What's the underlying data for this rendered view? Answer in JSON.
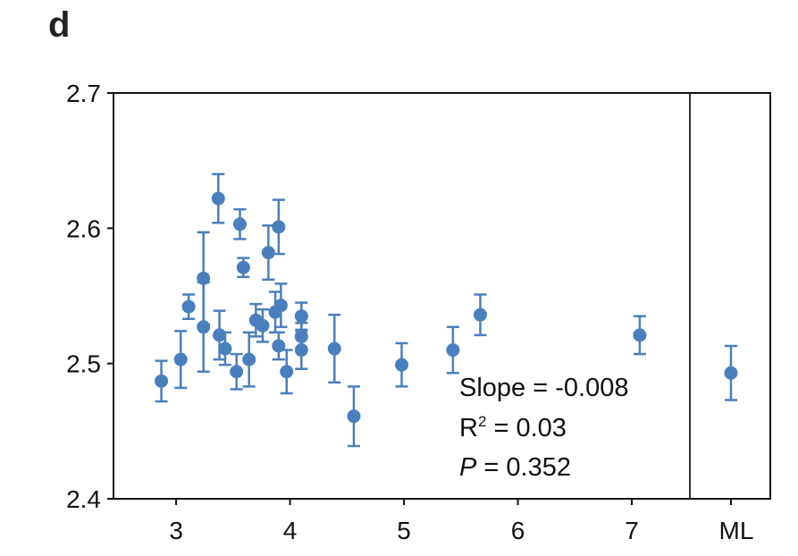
{
  "panel_label": "d",
  "chart_data": {
    "type": "scatter",
    "title": "",
    "xlabel": "",
    "ylabel": "",
    "xlim": [
      2.45,
      7.51
    ],
    "ylim": [
      2.4,
      2.7
    ],
    "x_ticks": [
      3,
      4,
      5,
      6,
      7
    ],
    "x_tick_labels": [
      "3",
      "4",
      "5",
      "6",
      "7"
    ],
    "y_ticks": [
      2.4,
      2.5,
      2.6,
      2.7
    ],
    "y_tick_labels": [
      "2.4",
      "2.5",
      "2.6",
      "2.7"
    ],
    "grid": false,
    "color": "#4a7fbd",
    "points": [
      {
        "x": 2.87,
        "y": 2.487,
        "err": 0.015
      },
      {
        "x": 3.04,
        "y": 2.503,
        "err": 0.021
      },
      {
        "x": 3.11,
        "y": 2.542,
        "err": 0.009
      },
      {
        "x": 3.24,
        "y": 2.563,
        "err": 0.034
      },
      {
        "x": 3.24,
        "y": 2.527,
        "err": 0.033
      },
      {
        "x": 3.37,
        "y": 2.622,
        "err": 0.018
      },
      {
        "x": 3.38,
        "y": 2.521,
        "err": 0.018
      },
      {
        "x": 3.43,
        "y": 2.511,
        "err": 0.012
      },
      {
        "x": 3.53,
        "y": 2.494,
        "err": 0.013
      },
      {
        "x": 3.56,
        "y": 2.603,
        "err": 0.011
      },
      {
        "x": 3.59,
        "y": 2.571,
        "err": 0.007
      },
      {
        "x": 3.64,
        "y": 2.503,
        "err": 0.02
      },
      {
        "x": 3.7,
        "y": 2.532,
        "err": 0.012
      },
      {
        "x": 3.76,
        "y": 2.528,
        "err": 0.012
      },
      {
        "x": 3.81,
        "y": 2.582,
        "err": 0.02
      },
      {
        "x": 3.87,
        "y": 2.538,
        "err": 0.015
      },
      {
        "x": 3.9,
        "y": 2.601,
        "err": 0.02
      },
      {
        "x": 3.9,
        "y": 2.513,
        "err": 0.01
      },
      {
        "x": 3.92,
        "y": 2.543,
        "err": 0.016
      },
      {
        "x": 3.97,
        "y": 2.494,
        "err": 0.016
      },
      {
        "x": 4.1,
        "y": 2.535,
        "err": 0.01
      },
      {
        "x": 4.1,
        "y": 2.52,
        "err": 0.01
      },
      {
        "x": 4.1,
        "y": 2.51,
        "err": 0.014
      },
      {
        "x": 4.39,
        "y": 2.511,
        "err": 0.025
      },
      {
        "x": 4.56,
        "y": 2.461,
        "err": 0.022
      },
      {
        "x": 4.98,
        "y": 2.499,
        "err": 0.016
      },
      {
        "x": 5.43,
        "y": 2.51,
        "err": 0.017
      },
      {
        "x": 5.67,
        "y": 2.536,
        "err": 0.015
      },
      {
        "x": 7.07,
        "y": 2.521,
        "err": 0.014
      }
    ],
    "ml": {
      "label": "ML",
      "y": 2.493,
      "err": 0.02
    },
    "annotations": {
      "slope": "Slope = -0.008",
      "r2_prefix": "R",
      "r2_sup": "2",
      "r2_suffix": " = 0.03",
      "p_label": "P",
      "p_suffix": " = 0.352"
    }
  }
}
